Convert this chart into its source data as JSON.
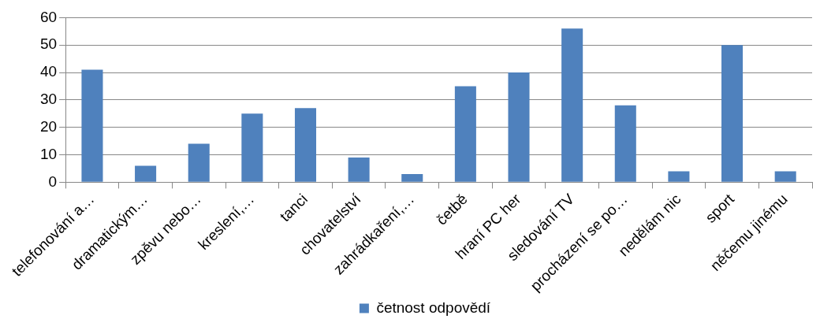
{
  "chart_data": {
    "type": "bar",
    "categories": [
      "telefonování a…",
      "dramatickým…",
      "zpěvu nebo…",
      "kreslení,…",
      "tanci",
      "chovatelství",
      "zahrádkaření,…",
      "četbě",
      "hraní PC her",
      "sledování TV",
      "procházení se po…",
      "nedělám nic",
      "sport",
      "něčemu jinému"
    ],
    "series": [
      {
        "name": "četnost odpovědí",
        "color": "#4f81bd",
        "values": [
          41,
          6,
          14,
          25,
          27,
          9,
          3,
          35,
          40,
          56,
          28,
          4,
          50,
          4
        ]
      }
    ],
    "ylim": [
      0,
      60
    ],
    "yticks": [
      0,
      10,
      20,
      30,
      40,
      50,
      60
    ],
    "grid": "y",
    "legend": "bottom"
  }
}
